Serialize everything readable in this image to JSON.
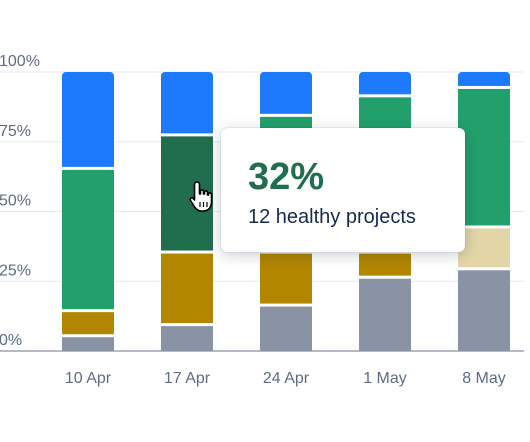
{
  "chart_data": {
    "type": "bar",
    "stacked": true,
    "normalized": true,
    "categories": [
      "10 Apr",
      "17 Apr",
      "24 Apr",
      "1 May",
      "8 May"
    ],
    "ylim": [
      0,
      100
    ],
    "yticks": [
      "0%",
      "25%",
      "50%",
      "75%",
      "100%"
    ],
    "grid": true,
    "series": [
      {
        "color": "#8993a4",
        "values": [
          6,
          10,
          17,
          27,
          30
        ]
      },
      {
        "color": "#b38600",
        "values": [
          9,
          26,
          19,
          9,
          0
        ]
      },
      {
        "color": "#e2d5a8",
        "values": [
          0,
          0,
          0,
          0,
          15
        ]
      },
      {
        "color": "#22a06b",
        "values": [
          51,
          0,
          49,
          56,
          50
        ]
      },
      {
        "color": "#216e4e",
        "values": [
          0,
          42,
          0,
          0,
          0
        ]
      },
      {
        "color": "#1d7afc",
        "values": [
          34,
          22,
          15,
          8,
          5
        ]
      }
    ],
    "tooltip": {
      "value": "32%",
      "label": "12 healthy projects"
    }
  }
}
